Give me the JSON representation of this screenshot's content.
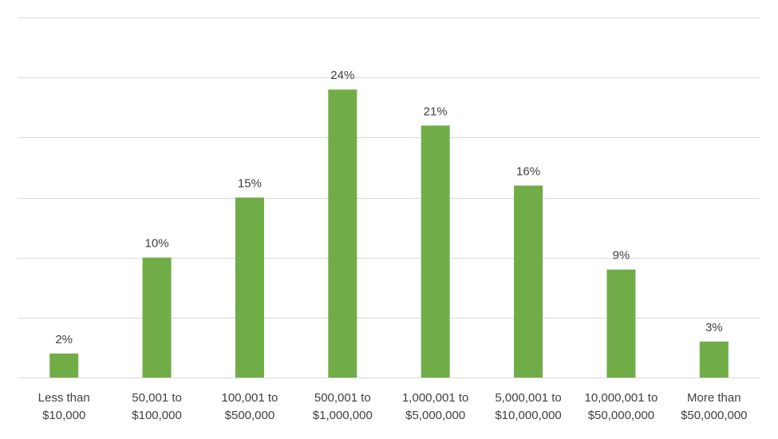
{
  "chart_data": {
    "type": "bar",
    "title": "",
    "xlabel": "",
    "ylabel": "",
    "categories": [
      [
        "Less than",
        "$10,000"
      ],
      [
        "50,001 to",
        "$100,000"
      ],
      [
        "100,001 to",
        "$500,000"
      ],
      [
        "500,001 to",
        "$1,000,000"
      ],
      [
        "1,000,001 to",
        "$5,000,000"
      ],
      [
        "5,000,001 to",
        "$10,000,000"
      ],
      [
        "10,000,001 to",
        "$50,000,000"
      ],
      [
        "More than",
        "$50,000,000"
      ]
    ],
    "values": [
      2,
      10,
      15,
      24,
      21,
      16,
      9,
      3
    ],
    "data_labels": [
      "2%",
      "10%",
      "15%",
      "24%",
      "21%",
      "16%",
      "9%",
      "3%"
    ],
    "ylim": [
      0,
      30
    ],
    "y_gridlines": [
      5,
      10,
      15,
      20,
      25,
      30
    ],
    "y_tick_labels_shown": false,
    "grid": true,
    "legend": "none",
    "bar_color": "#70ad47",
    "grid_color": "#d9d9d9",
    "text_color": "#404040"
  }
}
